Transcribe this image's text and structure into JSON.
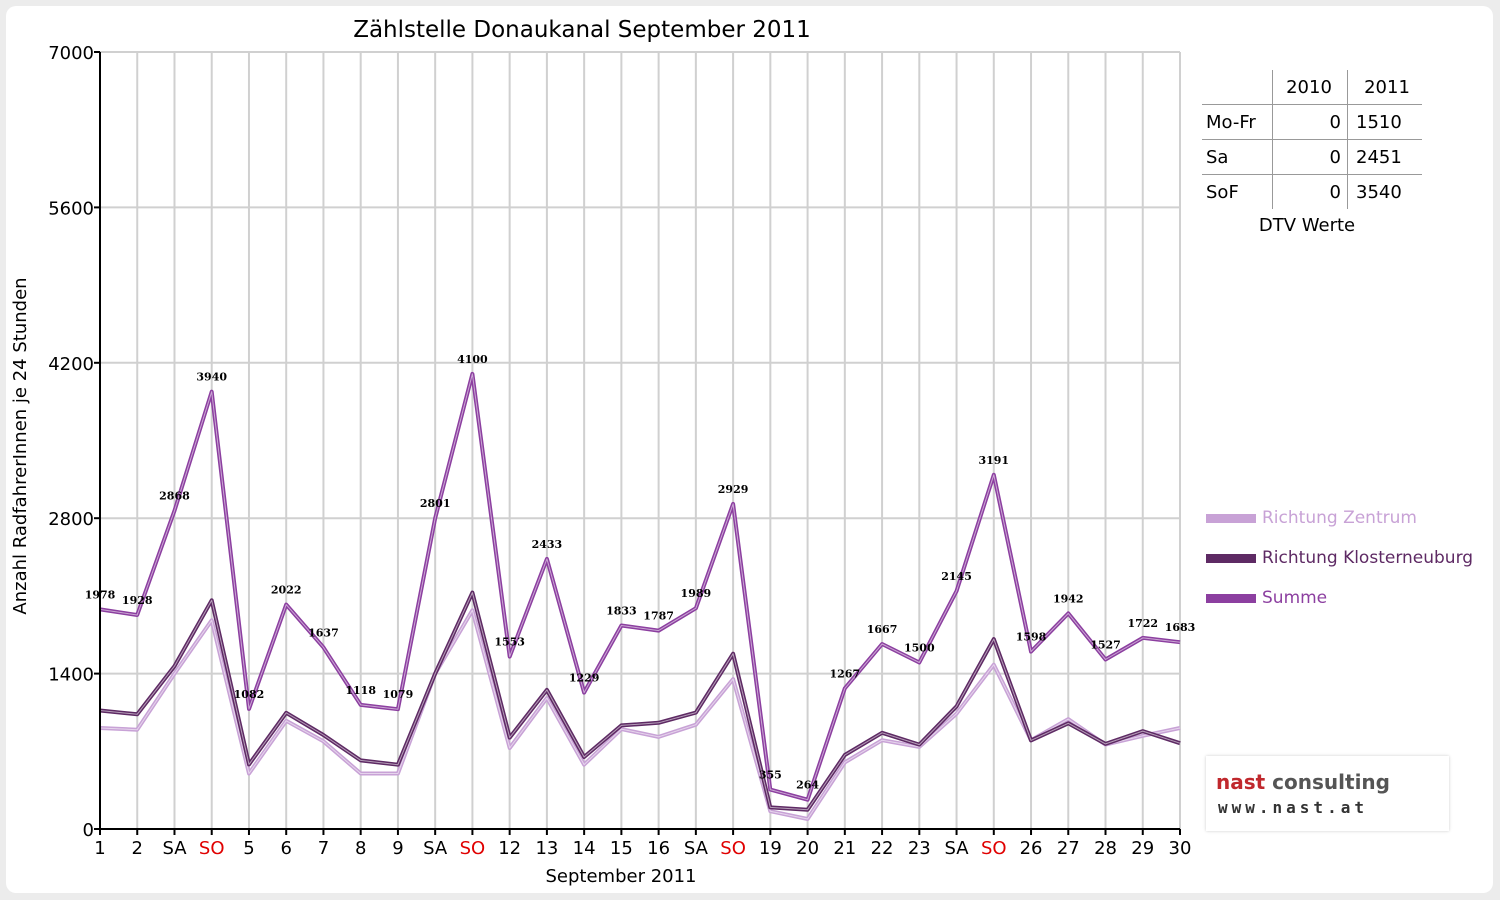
{
  "chart_data": {
    "type": "line",
    "title": "Zählstelle Donaukanal September 2011",
    "xlabel": "September 2011",
    "ylabel": "Anzahl RadfahrerInnen je 24 Stunden",
    "ylim": [
      0,
      7000
    ],
    "yticks": [
      "0",
      "1400",
      "2800",
      "4200",
      "5600",
      "7000"
    ],
    "categories": [
      "1",
      "2",
      "SA",
      "SO",
      "5",
      "6",
      "7",
      "8",
      "9",
      "SA",
      "SO",
      "12",
      "13",
      "14",
      "15",
      "16",
      "SA",
      "SO",
      "19",
      "20",
      "21",
      "22",
      "23",
      "SA",
      "SO",
      "26",
      "27",
      "28",
      "29",
      "30"
    ],
    "weekend_label_color": "#e00000",
    "grid": "vertical-and-horizontal",
    "series": [
      {
        "name": "Richtung Zentrum",
        "color": "#c8a2d6",
        "values": [
          910,
          895,
          1400,
          1880,
          500,
          975,
          790,
          500,
          500,
          1400,
          1970,
          730,
          1180,
          580,
          900,
          830,
          940,
          1350,
          160,
          90,
          600,
          800,
          740,
          1040,
          1480,
          800,
          990,
          760,
          840,
          910
        ]
      },
      {
        "name": "Richtung Klosterneuburg",
        "color": "#5e2a64",
        "values": [
          1068,
          1033,
          1468,
          2060,
          582,
          1047,
          847,
          618,
          579,
          1401,
          2130,
          823,
          1253,
          649,
          933,
          957,
          1049,
          1579,
          195,
          174,
          667,
          867,
          760,
          1105,
          1711,
          798,
          952,
          767,
          882,
          773
        ]
      },
      {
        "name": "Summe",
        "color": "#8c3fa0",
        "values": [
          1978,
          1928,
          2868,
          3940,
          1082,
          2022,
          1637,
          1118,
          1079,
          2801,
          4100,
          1553,
          2433,
          1229,
          1833,
          1787,
          1989,
          2929,
          355,
          264,
          1267,
          1667,
          1500,
          2145,
          3191,
          1598,
          1942,
          1527,
          1722,
          1683
        ]
      }
    ],
    "data_labels": [
      "1978",
      "1928",
      "2868",
      "3940",
      "1082",
      "2022",
      "1637",
      "1118",
      "1079",
      "2801",
      "4100",
      "1553",
      "2433",
      "1229",
      "1833",
      "1787",
      "1989",
      "2929",
      "355",
      "264",
      "1267",
      "1667",
      "1500",
      "2145",
      "3191",
      "1598",
      "1942",
      "1527",
      "1722",
      "1683"
    ],
    "legend_placement": "right"
  },
  "dtv": {
    "title": "DTV Werte",
    "headers": [
      "",
      "2010",
      "2011"
    ],
    "rows": [
      {
        "label": "Mo-Fr",
        "v2010": "0",
        "v2011": "1510"
      },
      {
        "label": "Sa",
        "v2010": "0",
        "v2011": "2451"
      },
      {
        "label": "SoF",
        "v2010": "0",
        "v2011": "3540"
      }
    ]
  },
  "logo": {
    "name_part1": "nast",
    "name_part2": "consulting",
    "url": "www.nast.at",
    "color1": "#c0282d",
    "color2": "#555555"
  }
}
